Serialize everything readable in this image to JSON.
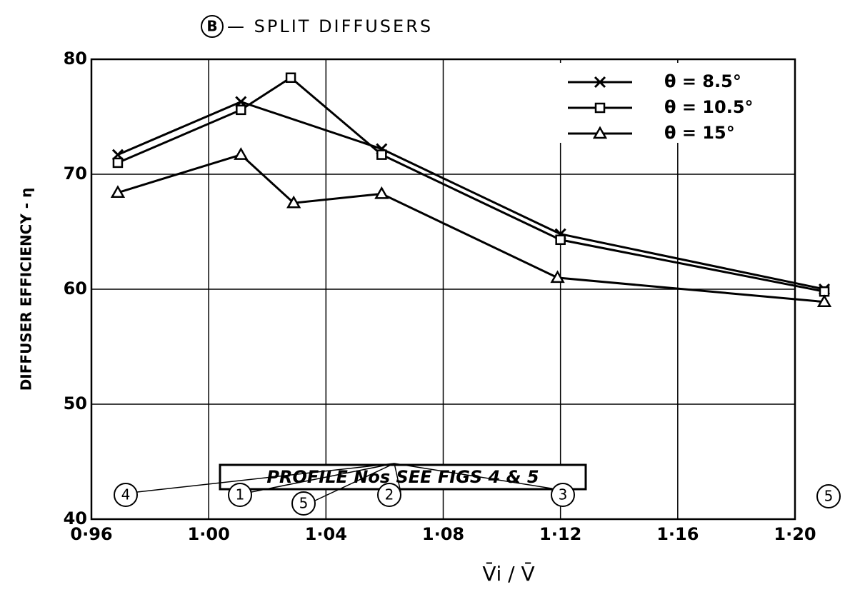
{
  "chart_data": {
    "type": "line",
    "title_mark": "B",
    "title": "— SPLIT DIFFUSERS",
    "y_label": "DIFFUSER EFFICIENCY - η",
    "x_label": "V̄i / V̄",
    "xlim": [
      0.96,
      1.2
    ],
    "ylim": [
      40,
      80
    ],
    "xticks": [
      {
        "value": 0.96,
        "label": "0·96"
      },
      {
        "value": 1.0,
        "label": "1·00"
      },
      {
        "value": 1.04,
        "label": "1·04"
      },
      {
        "value": 1.08,
        "label": "1·08"
      },
      {
        "value": 1.12,
        "label": "1·12"
      },
      {
        "value": 1.16,
        "label": "1·16"
      },
      {
        "value": 1.2,
        "label": "1·20"
      }
    ],
    "yticks": [
      40,
      50,
      60,
      70,
      80
    ],
    "grid": true,
    "legend": "upper right",
    "series": [
      {
        "name": "θ = 8.5°",
        "color": "#000000",
        "marker": "x",
        "x": [
          0.969,
          1.011,
          1.059,
          1.12,
          1.21
        ],
        "values": [
          71.7,
          76.3,
          72.2,
          64.8,
          60.0
        ]
      },
      {
        "name": "θ = 10.5°",
        "color": "#000000",
        "marker": "square",
        "x": [
          0.969,
          1.011,
          1.028,
          1.059,
          1.12,
          1.21
        ],
        "values": [
          71.0,
          75.6,
          78.4,
          71.7,
          64.3,
          59.8
        ]
      },
      {
        "name": "θ = 15°",
        "color": "#000000",
        "marker": "triangle",
        "x": [
          0.969,
          1.011,
          1.029,
          1.059,
          1.119,
          1.21
        ],
        "values": [
          68.4,
          71.7,
          67.5,
          68.3,
          61.0,
          58.9
        ]
      }
    ],
    "annotation": "PROFILE Nos SEE FIGS 4 & 5",
    "profile_labels": [
      "4",
      "1",
      "5",
      "2",
      "3",
      "5"
    ]
  }
}
